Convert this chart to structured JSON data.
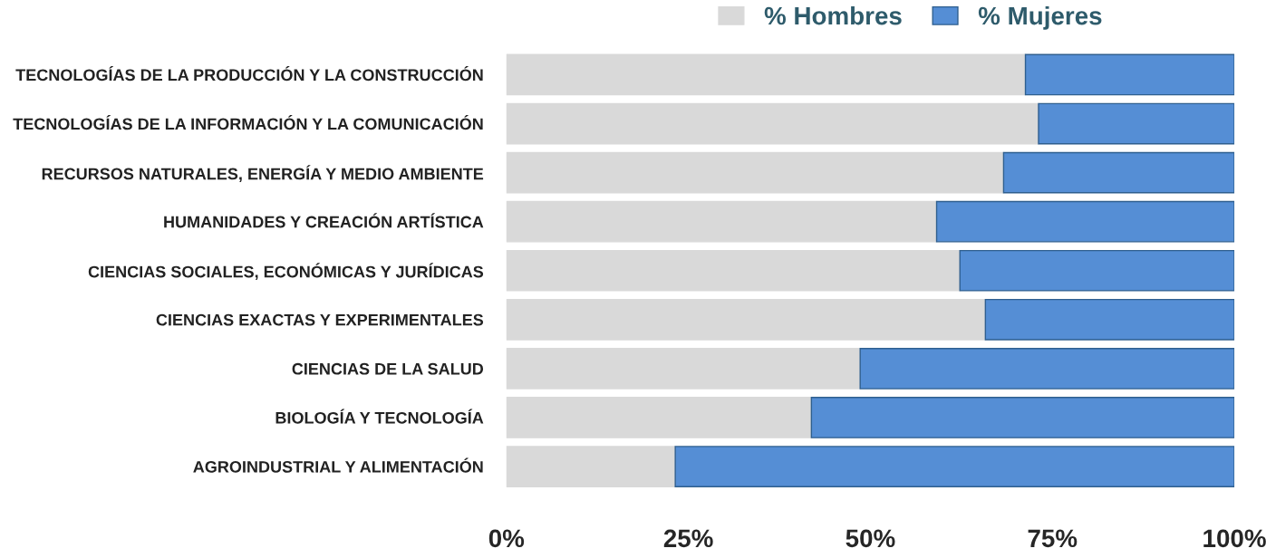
{
  "chart_data": {
    "type": "bar",
    "orientation": "horizontal",
    "stacked": true,
    "categories": [
      "TECNOLOGÍAS DE LA PRODUCCIÓN Y LA CONSTRUCCIÓN",
      "TECNOLOGÍAS DE LA INFORMACIÓN Y LA COMUNICACIÓN",
      "RECURSOS NATURALES, ENERGÍA Y MEDIO AMBIENTE",
      "HUMANIDADES Y CREACIÓN ARTÍSTICA",
      "CIENCIAS SOCIALES, ECONÓMICAS Y JURÍDICAS",
      "CIENCIAS EXACTAS Y EXPERIMENTALES",
      "CIENCIAS DE LA SALUD",
      "BIOLOGÍA Y TECNOLOGÍA",
      "AGROINDUSTRIAL Y ALIMENTACIÓN"
    ],
    "series": [
      {
        "name": "% Hombres",
        "color": "#d9d9d9",
        "values": [
          71.3,
          73.1,
          68.3,
          59.1,
          62.3,
          65.8,
          48.6,
          41.9,
          23.2
        ]
      },
      {
        "name": "% Mujeres",
        "color": "#558ed5",
        "values": [
          28.7,
          26.9,
          31.7,
          40.9,
          37.7,
          34.2,
          51.4,
          58.1,
          76.8
        ]
      }
    ],
    "xlim": [
      0,
      100
    ],
    "xticks": [
      {
        "value": 0,
        "label": "0%"
      },
      {
        "value": 25,
        "label": "25%"
      },
      {
        "value": 50,
        "label": "50%"
      },
      {
        "value": 75,
        "label": "75%"
      },
      {
        "value": 100,
        "label": "100%"
      }
    ],
    "legend": "top right",
    "grid": false
  }
}
